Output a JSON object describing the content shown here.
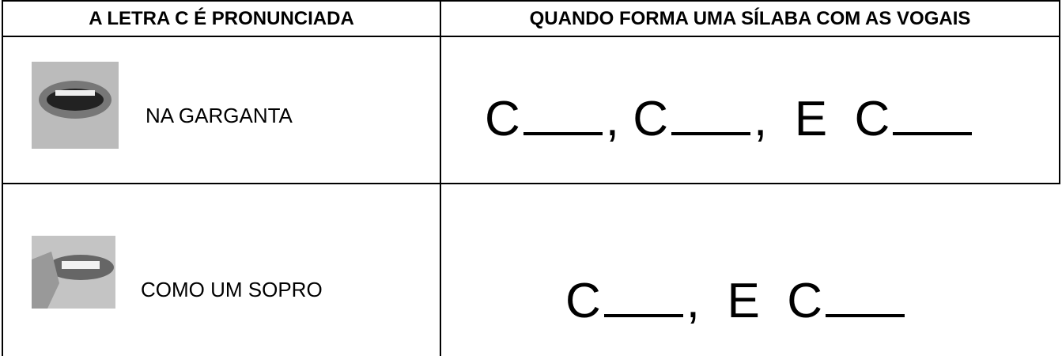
{
  "table": {
    "header": [
      "A LETRA C É PRONUNCIADA",
      "QUANDO FORMA UMA SÍLABA COM AS VOGAIS"
    ],
    "rows": [
      [
        "NA GARGANTA",
        [
          "C",
          ", C",
          ",  E  C"
        ]
      ],
      [
        "COMO UM SOPRO",
        [
          "C",
          ",  E  C"
        ]
      ]
    ]
  }
}
